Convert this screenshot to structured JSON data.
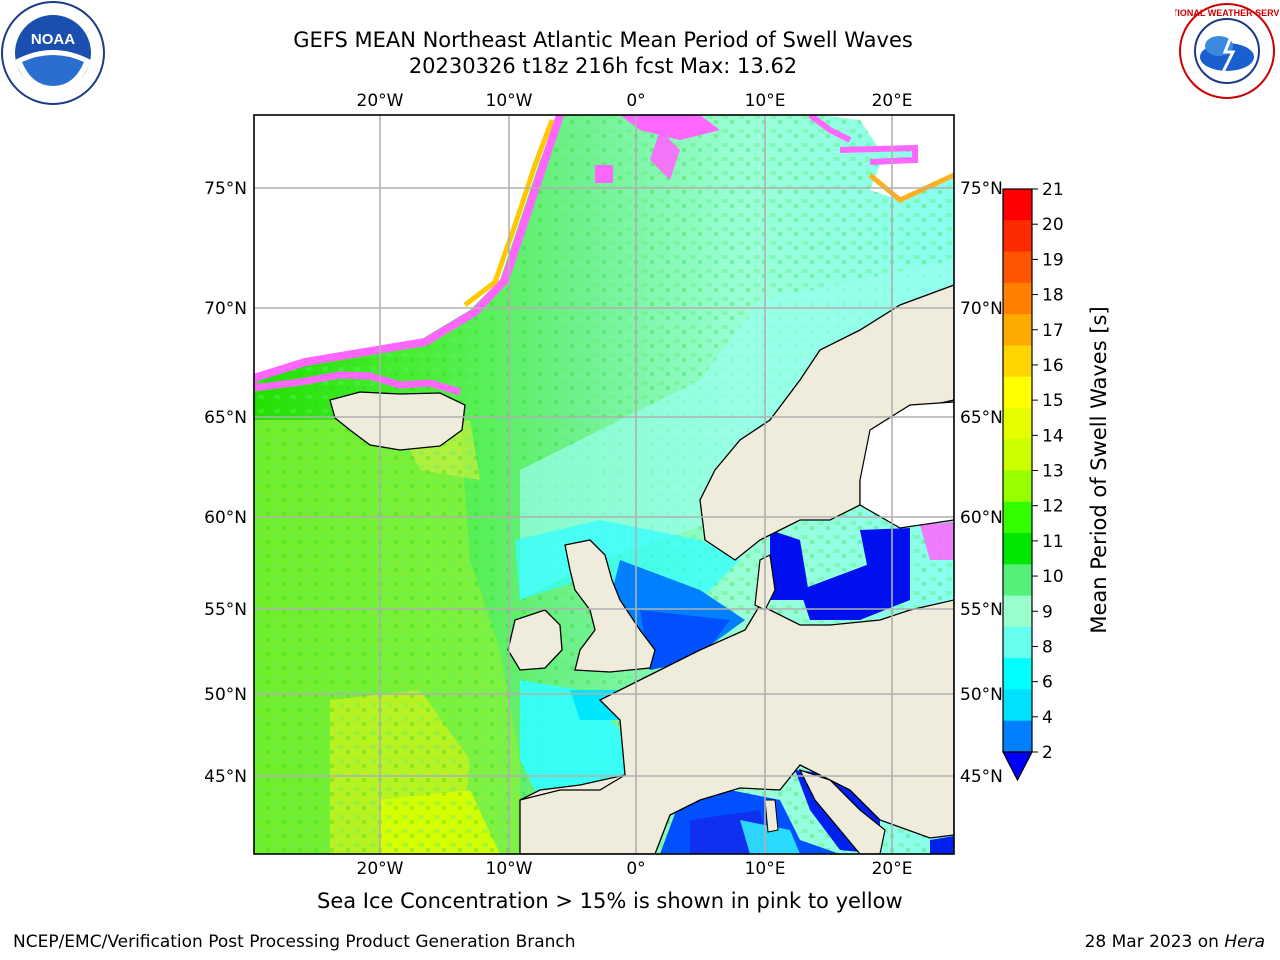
{
  "title": {
    "line1": "GEFS MEAN Northeast Atlantic Mean Period of Swell Waves",
    "line2": "20230326 t18z 216h fcst   Max: 13.62"
  },
  "map": {
    "lon_ticks": [
      "20°W",
      "10°W",
      "0°",
      "10°E",
      "20°E"
    ],
    "lat_ticks": [
      "75°N",
      "70°N",
      "65°N",
      "60°N",
      "55°N",
      "50°N",
      "45°N"
    ],
    "colors": {
      "land": "#efecdc",
      "ice_open": "#ffffff",
      "grid": "#b0b0b0"
    }
  },
  "colorbar": {
    "label": "Mean Period of Swell Waves [s]",
    "ticks": [
      "21",
      "20",
      "19",
      "18",
      "17",
      "16",
      "15",
      "14",
      "13",
      "12",
      "11",
      "10",
      "9",
      "8",
      "6",
      "4",
      "2"
    ],
    "colors": [
      "#ff0000",
      "#ff2b00",
      "#ff5500",
      "#ff8000",
      "#ffaa00",
      "#ffd500",
      "#ffff00",
      "#e6ff00",
      "#ccff00",
      "#99ff00",
      "#33ff00",
      "#00e600",
      "#55f07a",
      "#99ffcc",
      "#66ffee",
      "#00ffff",
      "#00e0ff",
      "#0080ff"
    ]
  },
  "note": "Sea Ice Concentration > 15% is shown in pink to yellow",
  "footer": {
    "left": "NCEP/EMC/Verification Post Processing Product Generation Branch",
    "date": "28 Mar 2023 on ",
    "machine": "Hera"
  },
  "logos": {
    "left": "noaa-logo",
    "left_text": "NOAA",
    "right": "national-weather-service-logo",
    "right_text": "NATIONAL WEATHER SERVICE"
  }
}
